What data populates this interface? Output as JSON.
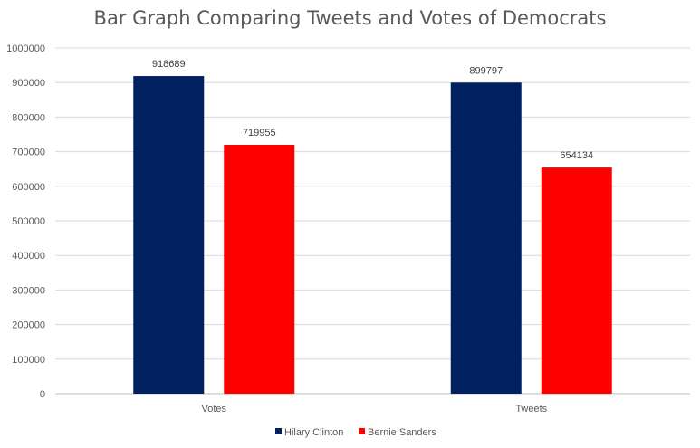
{
  "chart_data": {
    "type": "bar",
    "title": "Bar Graph Comparing Tweets and Votes of Democrats",
    "categories": [
      "Votes",
      "Tweets"
    ],
    "series": [
      {
        "name": "Hilary Clinton",
        "values": [
          918689,
          899797
        ],
        "color": "#002060"
      },
      {
        "name": "Bernie Sanders",
        "values": [
          719955,
          654134
        ],
        "color": "#ff0000"
      }
    ],
    "ylim": [
      0,
      1000000
    ],
    "yticks": [
      0,
      100000,
      200000,
      300000,
      400000,
      500000,
      600000,
      700000,
      800000,
      900000,
      1000000
    ],
    "grid": true,
    "legend_position": "bottom",
    "data_labels": true
  }
}
